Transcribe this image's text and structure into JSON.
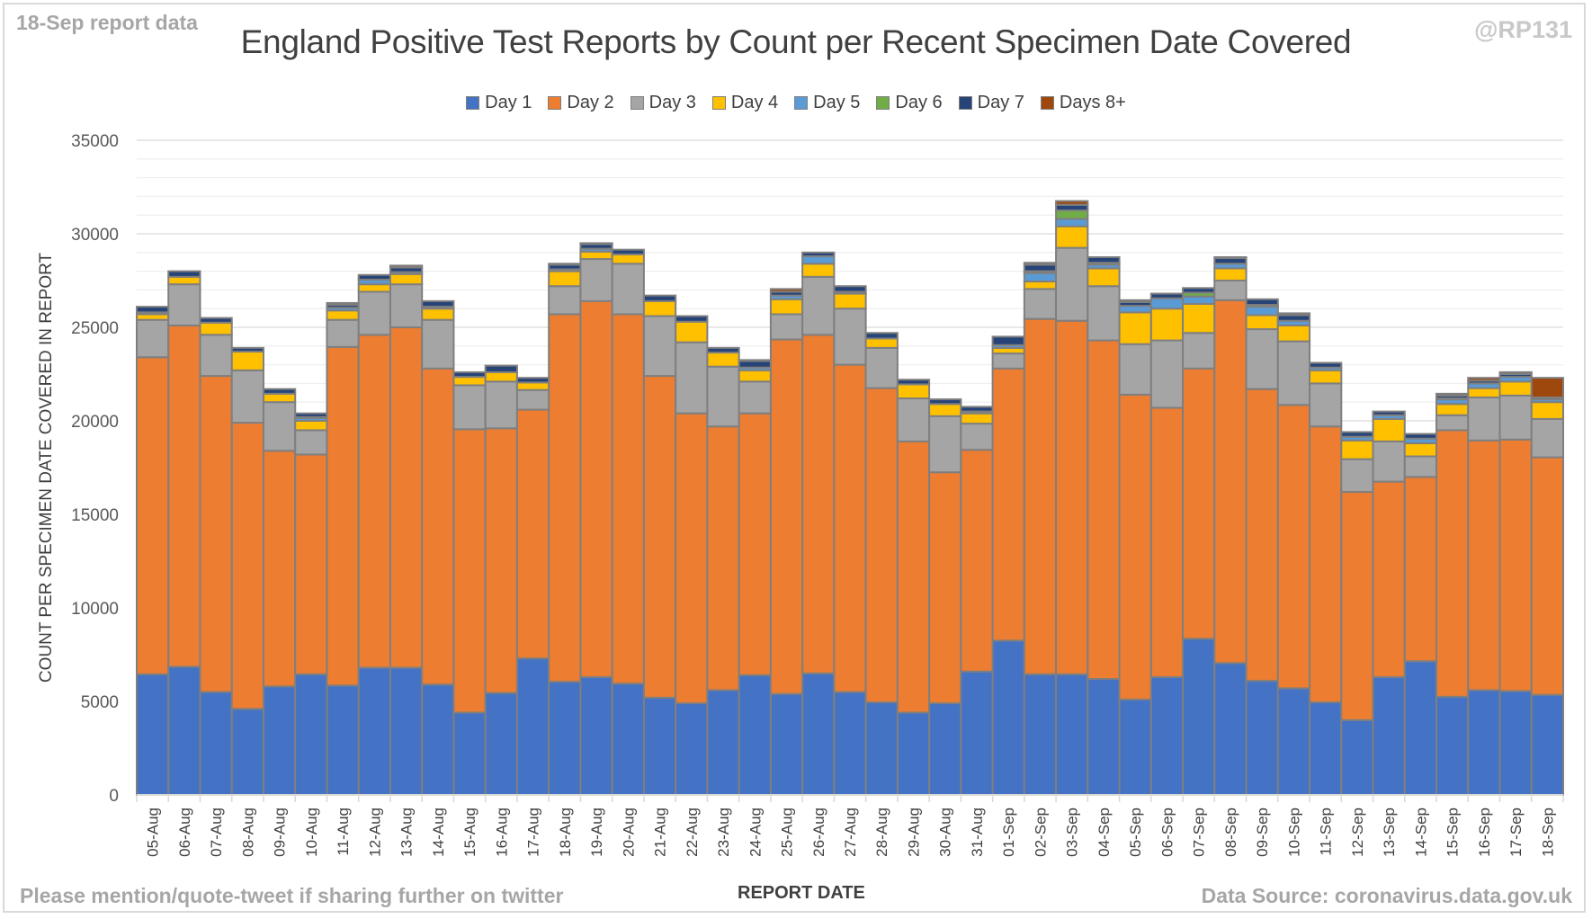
{
  "header": {
    "corner_left": "18-Sep report data",
    "corner_right": "@RP131"
  },
  "footer": {
    "left": "Please mention/quote-tweet if sharing further on twitter",
    "right": "Data Source: coronavirus.data.gov.uk"
  },
  "chart_data": {
    "type": "bar",
    "stacked": true,
    "title": "England Positive Test Reports by Count per Recent Specimen Date Covered",
    "xlabel": "REPORT DATE",
    "ylabel": "COUNT PER SPECIMEN DATE COVERED IN REPORT",
    "ylim": [
      0,
      35000
    ],
    "yticks": [
      0,
      5000,
      10000,
      15000,
      20000,
      25000,
      30000,
      35000
    ],
    "grid": true,
    "legend_position": "top",
    "categories": [
      "05-Aug",
      "06-Aug",
      "07-Aug",
      "08-Aug",
      "09-Aug",
      "10-Aug",
      "11-Aug",
      "12-Aug",
      "13-Aug",
      "14-Aug",
      "15-Aug",
      "16-Aug",
      "17-Aug",
      "18-Aug",
      "19-Aug",
      "20-Aug",
      "21-Aug",
      "22-Aug",
      "23-Aug",
      "24-Aug",
      "25-Aug",
      "26-Aug",
      "27-Aug",
      "28-Aug",
      "29-Aug",
      "30-Aug",
      "31-Aug",
      "01-Sep",
      "02-Sep",
      "03-Sep",
      "04-Sep",
      "05-Sep",
      "06-Sep",
      "07-Sep",
      "08-Sep",
      "09-Sep",
      "10-Sep",
      "11-Sep",
      "12-Sep",
      "13-Sep",
      "14-Sep",
      "15-Sep",
      "16-Sep",
      "17-Sep",
      "18-Sep"
    ],
    "series": [
      {
        "name": "Day 1",
        "color": "#4472c4",
        "values": [
          6450,
          6850,
          5500,
          4600,
          5800,
          6450,
          5850,
          6800,
          6800,
          5900,
          4400,
          5450,
          7300,
          6050,
          6300,
          5950,
          5200,
          4900,
          5600,
          6400,
          5400,
          6500,
          5500,
          4950,
          4400,
          4900,
          6600,
          8250,
          6450,
          6450,
          6200,
          5100,
          6300,
          8350,
          7050,
          6100,
          5700,
          4950,
          4000,
          6300,
          7150,
          5250,
          5600,
          5550,
          5350
        ]
      },
      {
        "name": "Day 2",
        "color": "#ed7d31",
        "values": [
          16950,
          18250,
          16900,
          15300,
          12600,
          11750,
          18100,
          17800,
          18200,
          16900,
          15150,
          14150,
          13300,
          19650,
          20100,
          19750,
          17200,
          15500,
          14100,
          14000,
          18950,
          18100,
          17500,
          16800,
          14500,
          12350,
          11850,
          14550,
          19000,
          18900,
          18100,
          16300,
          14400,
          14450,
          19400,
          15600,
          15150,
          14750,
          12200,
          10450,
          9850,
          14250,
          13350,
          13450,
          12700
        ]
      },
      {
        "name": "Day 3",
        "color": "#a5a5a5",
        "values": [
          2000,
          2200,
          2200,
          2800,
          2600,
          1300,
          1450,
          2300,
          2300,
          2600,
          2350,
          2500,
          1050,
          1500,
          2250,
          2700,
          3200,
          3800,
          3200,
          1700,
          1350,
          3100,
          3000,
          2150,
          2300,
          3000,
          1400,
          800,
          1600,
          3900,
          2900,
          2700,
          3600,
          1900,
          1050,
          3200,
          3400,
          2300,
          1750,
          2150,
          1100,
          800,
          2300,
          2350,
          2050
        ]
      },
      {
        "name": "Day 4",
        "color": "#ffc000",
        "values": [
          300,
          400,
          650,
          1000,
          450,
          500,
          500,
          400,
          550,
          600,
          450,
          500,
          400,
          800,
          400,
          500,
          800,
          1100,
          750,
          600,
          800,
          700,
          800,
          500,
          750,
          650,
          550,
          300,
          400,
          1150,
          950,
          1700,
          1700,
          1550,
          650,
          750,
          850,
          700,
          1000,
          1200,
          700,
          600,
          500,
          750,
          900
        ]
      },
      {
        "name": "Day 5",
        "color": "#5b9bd5",
        "values": [
          100,
          0,
          0,
          0,
          0,
          150,
          150,
          250,
          100,
          100,
          0,
          0,
          0,
          100,
          150,
          0,
          0,
          0,
          0,
          150,
          200,
          400,
          100,
          0,
          0,
          0,
          100,
          150,
          450,
          400,
          200,
          350,
          550,
          400,
          250,
          450,
          250,
          150,
          200,
          200,
          250,
          250,
          250,
          250,
          150
        ]
      },
      {
        "name": "Day 6",
        "color": "#70ad47",
        "values": [
          0,
          0,
          0,
          0,
          0,
          50,
          0,
          0,
          0,
          0,
          0,
          0,
          0,
          0,
          0,
          0,
          0,
          0,
          0,
          0,
          0,
          0,
          0,
          0,
          0,
          0,
          0,
          0,
          100,
          450,
          100,
          0,
          0,
          200,
          0,
          100,
          0,
          0,
          0,
          0,
          0,
          50,
          0,
          0,
          0
        ]
      },
      {
        "name": "Day 7",
        "color": "#264478",
        "values": [
          300,
          300,
          250,
          200,
          250,
          200,
          150,
          250,
          250,
          300,
          250,
          350,
          250,
          250,
          250,
          250,
          300,
          300,
          250,
          350,
          200,
          200,
          300,
          300,
          250,
          250,
          250,
          450,
          350,
          300,
          300,
          200,
          250,
          250,
          300,
          300,
          300,
          250,
          250,
          200,
          250,
          150,
          150,
          150,
          100
        ]
      },
      {
        "name": "Days 8+",
        "color": "#9e480e",
        "values": [
          0,
          0,
          0,
          0,
          0,
          0,
          100,
          0,
          100,
          0,
          0,
          0,
          0,
          50,
          50,
          0,
          0,
          0,
          0,
          50,
          150,
          0,
          0,
          0,
          0,
          0,
          0,
          0,
          100,
          200,
          0,
          100,
          0,
          0,
          50,
          0,
          100,
          0,
          0,
          0,
          0,
          100,
          150,
          100,
          1050
        ]
      }
    ]
  }
}
